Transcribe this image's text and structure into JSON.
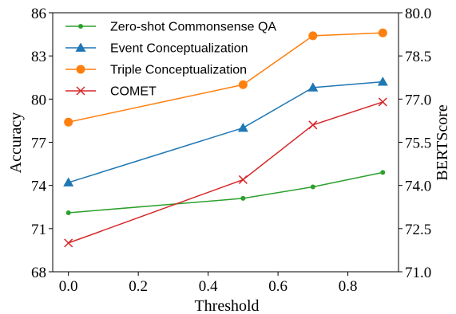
{
  "chart_data": {
    "type": "line",
    "xlabel": "Threshold",
    "ylabel": "Accuracy",
    "y2label": "BERTScore",
    "xlim": [
      -0.045,
      0.945
    ],
    "ylim": [
      68,
      86
    ],
    "y2lim": [
      71.0,
      80.0
    ],
    "xticks": [
      0.0,
      0.2,
      0.4,
      0.6,
      0.8
    ],
    "xtick_labels": [
      "0.0",
      "0.2",
      "0.4",
      "0.6",
      "0.8"
    ],
    "yticks": [
      68,
      71,
      74,
      77,
      80,
      83,
      86
    ],
    "ytick_labels": [
      "68",
      "71",
      "74",
      "77",
      "80",
      "83",
      "86"
    ],
    "y2ticks": [
      71.0,
      72.5,
      74.0,
      75.5,
      77.0,
      78.5,
      80.0
    ],
    "y2tick_labels": [
      "71.0",
      "72.5",
      "74.0",
      "75.5",
      "77.0",
      "78.5",
      "80.0"
    ],
    "grid": false,
    "legend_position": "top-left",
    "series": [
      {
        "name": "Zero-shot Commonsense QA",
        "axis": "left",
        "color": "#2ca02c",
        "marker": "dot",
        "x": [
          0.0,
          0.5,
          0.7,
          0.9
        ],
        "values": [
          72.1,
          73.1,
          73.9,
          74.9
        ]
      },
      {
        "name": "Event Conceptualization",
        "axis": "left",
        "color": "#1f77b4",
        "marker": "triangle",
        "x": [
          0.0,
          0.5,
          0.7,
          0.9
        ],
        "values": [
          74.2,
          78.0,
          80.8,
          81.2
        ]
      },
      {
        "name": "Triple Conceptualization",
        "axis": "right",
        "color": "#ff7f0e",
        "marker": "circle",
        "x": [
          0.0,
          0.5,
          0.7,
          0.9
        ],
        "values": [
          76.2,
          77.5,
          79.2,
          79.3
        ]
      },
      {
        "name": "COMET",
        "axis": "right",
        "color": "#d62728",
        "marker": "x",
        "x": [
          0.0,
          0.5,
          0.7,
          0.9
        ],
        "values": [
          72.0,
          74.2,
          76.1,
          76.9
        ]
      }
    ]
  }
}
